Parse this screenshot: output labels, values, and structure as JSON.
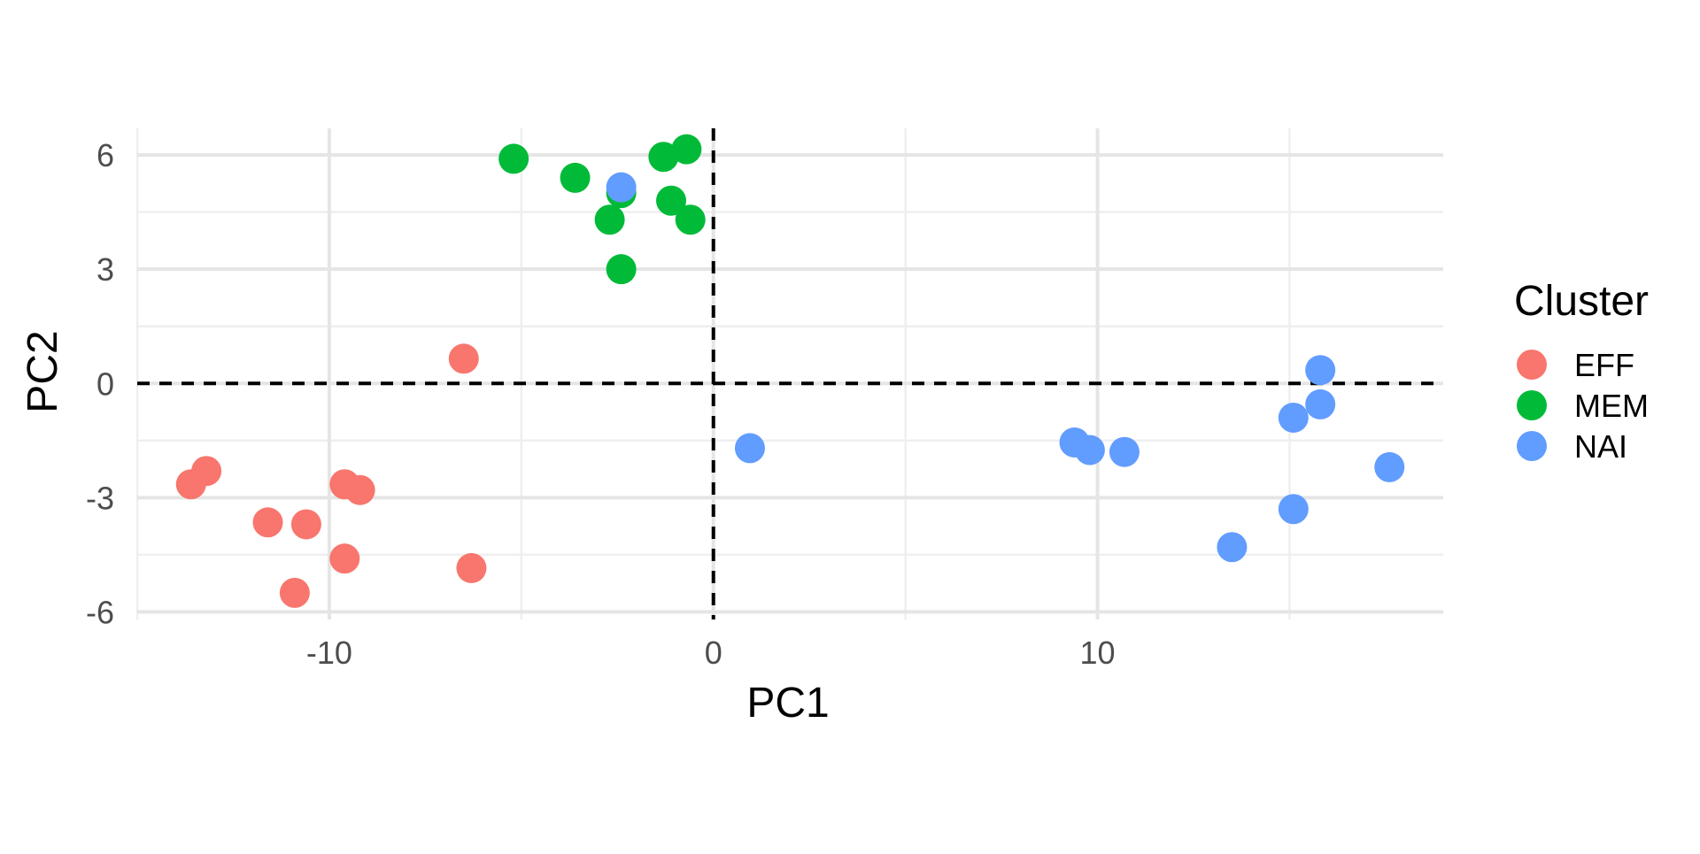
{
  "chart_data": {
    "type": "scatter",
    "title": "",
    "xlabel": "PC1",
    "ylabel": "PC2",
    "xlim": [
      -15.0,
      19.0
    ],
    "ylim": [
      -6.2,
      6.7
    ],
    "x_ticks": [
      -10,
      0,
      10
    ],
    "y_ticks": [
      -6,
      -3,
      0,
      3,
      6
    ],
    "x_minor_ticks": [
      -15,
      -5,
      5,
      15
    ],
    "y_minor_ticks": [
      -4.5,
      -1.5,
      1.5,
      4.5
    ],
    "reference_lines": {
      "x": 0,
      "y": 0,
      "style": "dashed",
      "color": "#000000"
    },
    "grid": true,
    "legend": {
      "title": "Cluster",
      "position": "right"
    },
    "series": [
      {
        "name": "EFF",
        "color": "#F8766D",
        "points": [
          {
            "x": -6.5,
            "y": 0.65
          },
          {
            "x": -13.2,
            "y": -2.3
          },
          {
            "x": -13.6,
            "y": -2.65
          },
          {
            "x": -9.6,
            "y": -2.65
          },
          {
            "x": -9.2,
            "y": -2.8
          },
          {
            "x": -11.6,
            "y": -3.65
          },
          {
            "x": -10.6,
            "y": -3.7
          },
          {
            "x": -9.6,
            "y": -4.6
          },
          {
            "x": -6.3,
            "y": -4.85
          },
          {
            "x": -10.9,
            "y": -5.5
          }
        ]
      },
      {
        "name": "MEM",
        "color": "#00BA38",
        "points": [
          {
            "x": -5.2,
            "y": 5.9
          },
          {
            "x": -3.6,
            "y": 5.4
          },
          {
            "x": -2.4,
            "y": 5.0
          },
          {
            "x": -2.7,
            "y": 4.3
          },
          {
            "x": -1.3,
            "y": 5.95
          },
          {
            "x": -0.7,
            "y": 6.15
          },
          {
            "x": -1.1,
            "y": 4.8
          },
          {
            "x": -0.6,
            "y": 4.3
          },
          {
            "x": -2.4,
            "y": 3.0
          }
        ]
      },
      {
        "name": "NAI",
        "color": "#619CFF",
        "points": [
          {
            "x": -2.4,
            "y": 5.15
          },
          {
            "x": 0.95,
            "y": -1.7
          },
          {
            "x": 9.4,
            "y": -1.55
          },
          {
            "x": 9.8,
            "y": -1.75
          },
          {
            "x": 10.7,
            "y": -1.8
          },
          {
            "x": 15.8,
            "y": 0.35
          },
          {
            "x": 15.1,
            "y": -0.9
          },
          {
            "x": 15.8,
            "y": -0.55
          },
          {
            "x": 17.6,
            "y": -2.2
          },
          {
            "x": 15.1,
            "y": -3.3
          },
          {
            "x": 13.5,
            "y": -4.3
          }
        ]
      }
    ]
  }
}
